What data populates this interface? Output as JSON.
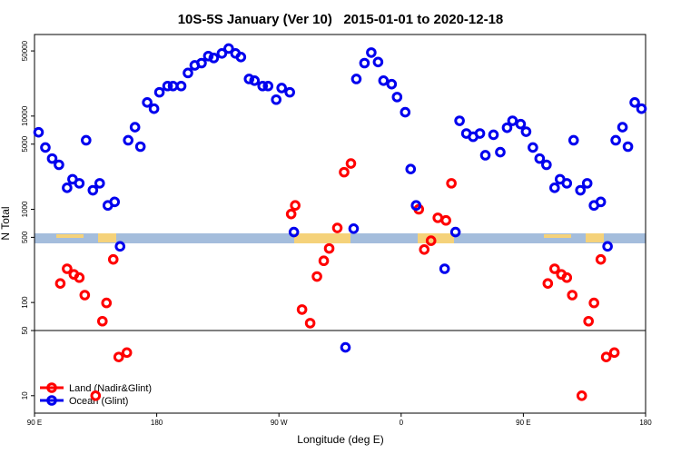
{
  "chart_data": {
    "type": "scatter",
    "title": "10S-5S January (Ver 10)   2015-01-01 to 2020-12-18",
    "x_label": "Longitude (deg E)",
    "y_label": "N Total",
    "xlim": [
      90,
      540
    ],
    "ylim": [
      6.5,
      75000
    ],
    "log_y": true,
    "xticks": [
      {
        "value": 90,
        "label": "90 E"
      },
      180,
      {
        "value": 270,
        "label": "90 W"
      },
      {
        "value": 360,
        "label": "0"
      },
      {
        "value": 450,
        "label": "90 E"
      },
      {
        "value": 540,
        "label": "180"
      }
    ],
    "yticks": [
      10,
      50,
      100,
      500,
      1000,
      5000,
      10000,
      50000
    ],
    "reference_line": 50,
    "legend": "bottom-left",
    "series": [
      {
        "name": "Land (Nadir&Glint)",
        "color": "#ff0000",
        "x": [
          109,
          114,
          119,
          123,
          127,
          135,
          140,
          143,
          148,
          152,
          158,
          279,
          282,
          287,
          293,
          298,
          303,
          307,
          313,
          318,
          323,
          373,
          377,
          382,
          387,
          393,
          397,
          468,
          473,
          478,
          482,
          486,
          493,
          498,
          502,
          507,
          511,
          517
        ],
        "values": [
          160,
          230,
          200,
          185,
          120,
          10,
          63,
          99,
          290,
          26,
          29,
          890,
          1100,
          84,
          60,
          190,
          280,
          380,
          630,
          2500,
          3100,
          1000,
          370,
          460,
          810,
          760,
          1900,
          160,
          230,
          200,
          185,
          120,
          10,
          63,
          99,
          290,
          26,
          29
        ]
      },
      {
        "name": "Ocean (Glint)",
        "color": "#0000ee",
        "x": [
          93,
          98,
          103,
          108,
          114,
          118,
          123,
          128,
          133,
          138,
          144,
          149,
          153,
          159,
          164,
          168,
          173,
          178,
          182,
          188,
          192,
          198,
          203,
          208,
          213,
          218,
          222,
          228,
          233,
          238,
          242,
          248,
          252,
          258,
          262,
          268,
          272,
          278,
          281,
          319,
          325,
          327,
          333,
          338,
          343,
          347,
          353,
          357,
          363,
          367,
          371,
          392,
          400,
          403,
          408,
          413,
          418,
          422,
          428,
          433,
          438,
          442,
          448,
          452,
          457,
          462,
          467,
          473,
          477,
          482,
          487,
          492,
          497,
          502,
          507,
          512,
          518,
          523,
          527,
          532,
          537
        ],
        "values": [
          6700,
          4600,
          3500,
          3000,
          1700,
          2100,
          1900,
          5500,
          1600,
          1900,
          1100,
          1200,
          400,
          5500,
          7600,
          4700,
          14000,
          12000,
          18000,
          21000,
          21000,
          21000,
          29000,
          35000,
          37000,
          44000,
          42000,
          47000,
          53000,
          47000,
          43000,
          25000,
          24000,
          21000,
          21000,
          15000,
          20000,
          18000,
          570,
          33,
          620,
          25000,
          37000,
          48000,
          38000,
          24000,
          22000,
          16000,
          11000,
          2700,
          1100,
          230,
          570,
          8900,
          6500,
          6000,
          6500,
          3800,
          6300,
          4100,
          7500,
          8900,
          8200,
          6800,
          4600,
          3500,
          3000,
          1700,
          2100,
          1900,
          5500,
          1600,
          1900,
          1100,
          1200,
          400,
          5500,
          7600,
          4700,
          14000,
          12000
        ]
      }
    ]
  }
}
